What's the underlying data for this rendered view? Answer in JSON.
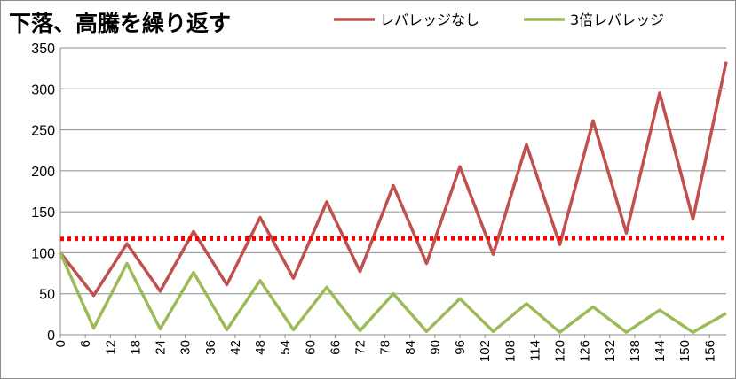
{
  "chart_data": {
    "type": "line",
    "title": "下落、高騰を繰り返す",
    "xlabel": "",
    "ylabel": "",
    "xlim": [
      0,
      160
    ],
    "ylim": [
      0,
      350
    ],
    "yticks": [
      0,
      50,
      100,
      150,
      200,
      250,
      300,
      350
    ],
    "xticks": [
      0,
      6,
      12,
      18,
      24,
      30,
      36,
      42,
      48,
      54,
      60,
      66,
      72,
      78,
      84,
      90,
      96,
      102,
      108,
      114,
      120,
      126,
      132,
      138,
      144,
      150,
      156
    ],
    "grid": "horizontal",
    "legend_position": "top",
    "series": [
      {
        "name": "レバレッジなし",
        "color": "#c0504d",
        "style": "solid",
        "points": [
          [
            0,
            100
          ],
          [
            8,
            48
          ],
          [
            16,
            111
          ],
          [
            24,
            53
          ],
          [
            32,
            126
          ],
          [
            40,
            61
          ],
          [
            48,
            143
          ],
          [
            56,
            69
          ],
          [
            64,
            162
          ],
          [
            72,
            77
          ],
          [
            80,
            182
          ],
          [
            88,
            87
          ],
          [
            96,
            205
          ],
          [
            104,
            98
          ],
          [
            112,
            232
          ],
          [
            120,
            110
          ],
          [
            128,
            261
          ],
          [
            136,
            124
          ],
          [
            144,
            295
          ],
          [
            152,
            141
          ],
          [
            160,
            333
          ]
        ]
      },
      {
        "name": "3倍レバレッジ",
        "color": "#9bbb59",
        "style": "solid",
        "points": [
          [
            0,
            100
          ],
          [
            8,
            8
          ],
          [
            16,
            87
          ],
          [
            24,
            7
          ],
          [
            32,
            76
          ],
          [
            40,
            6
          ],
          [
            48,
            66
          ],
          [
            56,
            6
          ],
          [
            64,
            58
          ],
          [
            72,
            5
          ],
          [
            80,
            50
          ],
          [
            88,
            4
          ],
          [
            96,
            44
          ],
          [
            104,
            4
          ],
          [
            112,
            38
          ],
          [
            120,
            3
          ],
          [
            128,
            34
          ],
          [
            136,
            3
          ],
          [
            144,
            30
          ],
          [
            152,
            3
          ],
          [
            160,
            26
          ]
        ]
      },
      {
        "name": "",
        "color": "#ff0000",
        "style": "dotted",
        "points": [
          [
            0,
            117
          ],
          [
            160,
            118
          ]
        ]
      }
    ]
  }
}
